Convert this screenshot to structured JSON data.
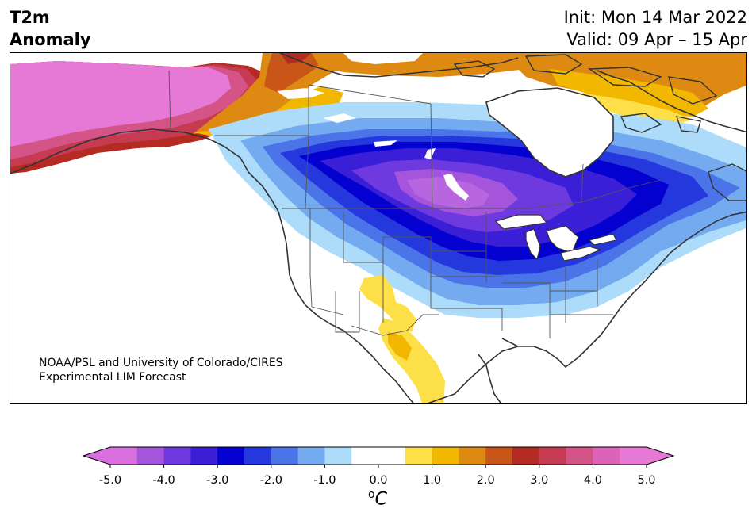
{
  "title": {
    "line1": "T2m",
    "line2": "Anomaly",
    "init": "Init: Mon 14 Mar 2022",
    "valid": "Valid: 09 Apr – 15 Apr"
  },
  "credit": {
    "line1": "NOAA/PSL and University of Colorado/CIRES",
    "line2": "Experimental LIM Forecast"
  },
  "colorbar": {
    "tick_labels": [
      "-5.0",
      "-4.0",
      "-3.0",
      "-2.0",
      "-1.0",
      "0.0",
      "1.0",
      "2.0",
      "3.0",
      "4.0",
      "5.0"
    ],
    "unit_sup": "o",
    "unit_main": "C",
    "colors": [
      "#da6fe0",
      "#a455dc",
      "#6e3ae0",
      "#3b1fd6",
      "#0300d0",
      "#2438dd",
      "#4a74e7",
      "#74aaf0",
      "#acdcf9",
      "#ffffff",
      "#ffffff",
      "#fde047",
      "#f2b800",
      "#de8a12",
      "#c95518",
      "#b52b23",
      "#c63a52",
      "#d45487",
      "#dd63b8",
      "#e678d6"
    ],
    "extend_min_color": "#da6fe0",
    "extend_max_color": "#e678d6",
    "range": [
      -5.0,
      5.0
    ],
    "step": 0.5
  },
  "map": {
    "region": "North America",
    "land_color": "#ffffff",
    "border_color": "#444444",
    "anomaly_regions": [
      {
        "name": "alaska-warm",
        "level_c": 5.0
      },
      {
        "name": "canadian-arctic-warm",
        "level_c": 2.0
      },
      {
        "name": "central-canada-cold",
        "level_c": -4.5
      },
      {
        "name": "southwest-warm",
        "level_c": 1.5
      }
    ]
  }
}
